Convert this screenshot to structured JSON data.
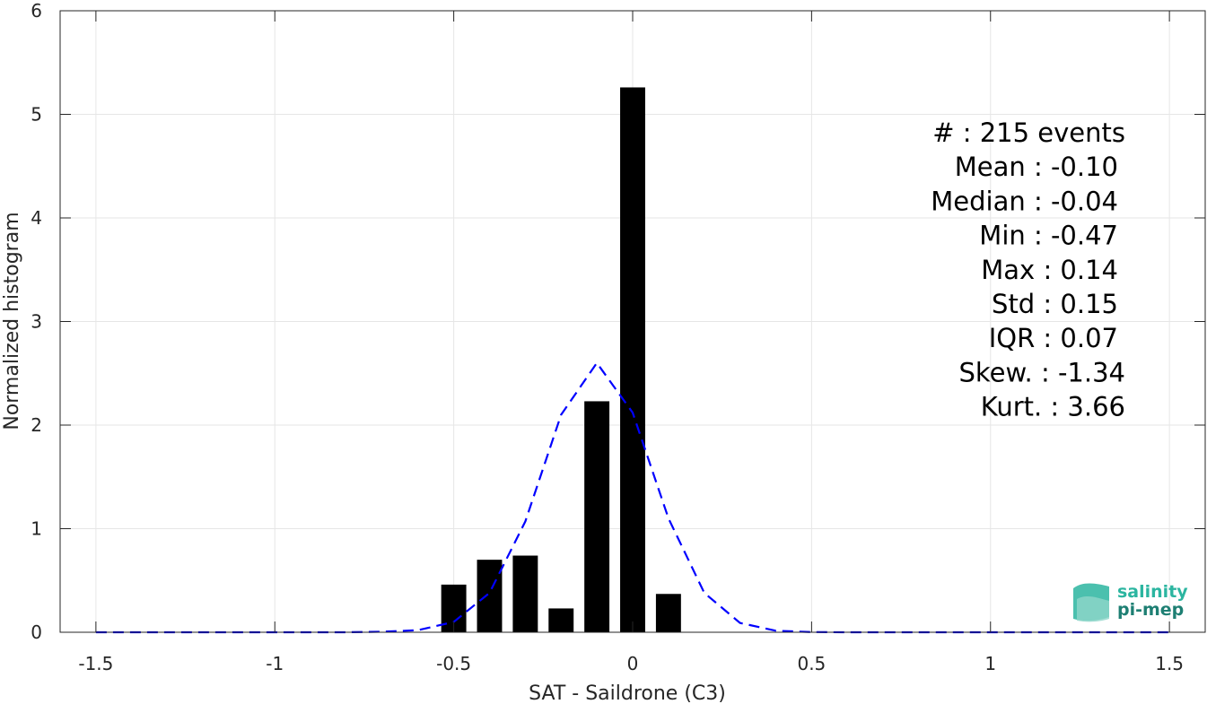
{
  "chart_data": {
    "type": "bar",
    "xlabel": "SAT - Saildrone (C3)",
    "ylabel": "Normalized histogram",
    "xlim": [
      -1.6,
      1.6
    ],
    "ylim": [
      0,
      6
    ],
    "grid": true,
    "xticks": [
      -1.5,
      -1,
      -0.5,
      0,
      0.5,
      1,
      1.5
    ],
    "xtick_labels": [
      "-1.5",
      "-1",
      "-0.5",
      "0",
      "0.5",
      "1",
      "1.5"
    ],
    "yticks": [
      0,
      1,
      2,
      3,
      4,
      5,
      6
    ],
    "ytick_labels": [
      "0",
      "1",
      "2",
      "3",
      "4",
      "5",
      "6"
    ],
    "bar_width": 0.07,
    "bars": [
      {
        "x": -0.5,
        "value": 0.46
      },
      {
        "x": -0.4,
        "value": 0.7
      },
      {
        "x": -0.3,
        "value": 0.74
      },
      {
        "x": -0.2,
        "value": 0.23
      },
      {
        "x": -0.1,
        "value": 2.23
      },
      {
        "x": 0.0,
        "value": 5.26
      },
      {
        "x": 0.1,
        "value": 0.37
      }
    ],
    "fit_curve": {
      "style": "dashed",
      "color": "#0000ff",
      "x": [
        -1.5,
        -1.4,
        -1.3,
        -1.2,
        -1.1,
        -1.0,
        -0.9,
        -0.8,
        -0.7,
        -0.6,
        -0.5,
        -0.4,
        -0.3,
        -0.2,
        -0.1,
        0.0,
        0.1,
        0.2,
        0.3,
        0.4,
        0.5,
        0.6,
        0.7,
        0.8,
        0.9,
        1.0,
        1.1,
        1.2,
        1.3,
        1.4,
        1.5
      ],
      "y": [
        0,
        0,
        0,
        0,
        0,
        0,
        0,
        0,
        0.005,
        0.02,
        0.1,
        0.38,
        1.07,
        2.1,
        2.6,
        2.12,
        1.1,
        0.38,
        0.09,
        0.015,
        0.002,
        0,
        0,
        0,
        0,
        0,
        0,
        0,
        0,
        0,
        0
      ]
    },
    "bar_color": "#000000"
  },
  "stats": [
    "#  : 215 events",
    "Mean : -0.10",
    "Median : -0.04",
    "Min : -0.47",
    "Max : 0.14",
    "Std : 0.15",
    "IQR : 0.07",
    "Skew. : -1.34",
    "Kurt. : 3.66"
  ],
  "logo": {
    "line1": "salinity",
    "line2": "pi-mep",
    "color_top": "#2bb5a0",
    "color_bottom": "#1e7f73"
  }
}
